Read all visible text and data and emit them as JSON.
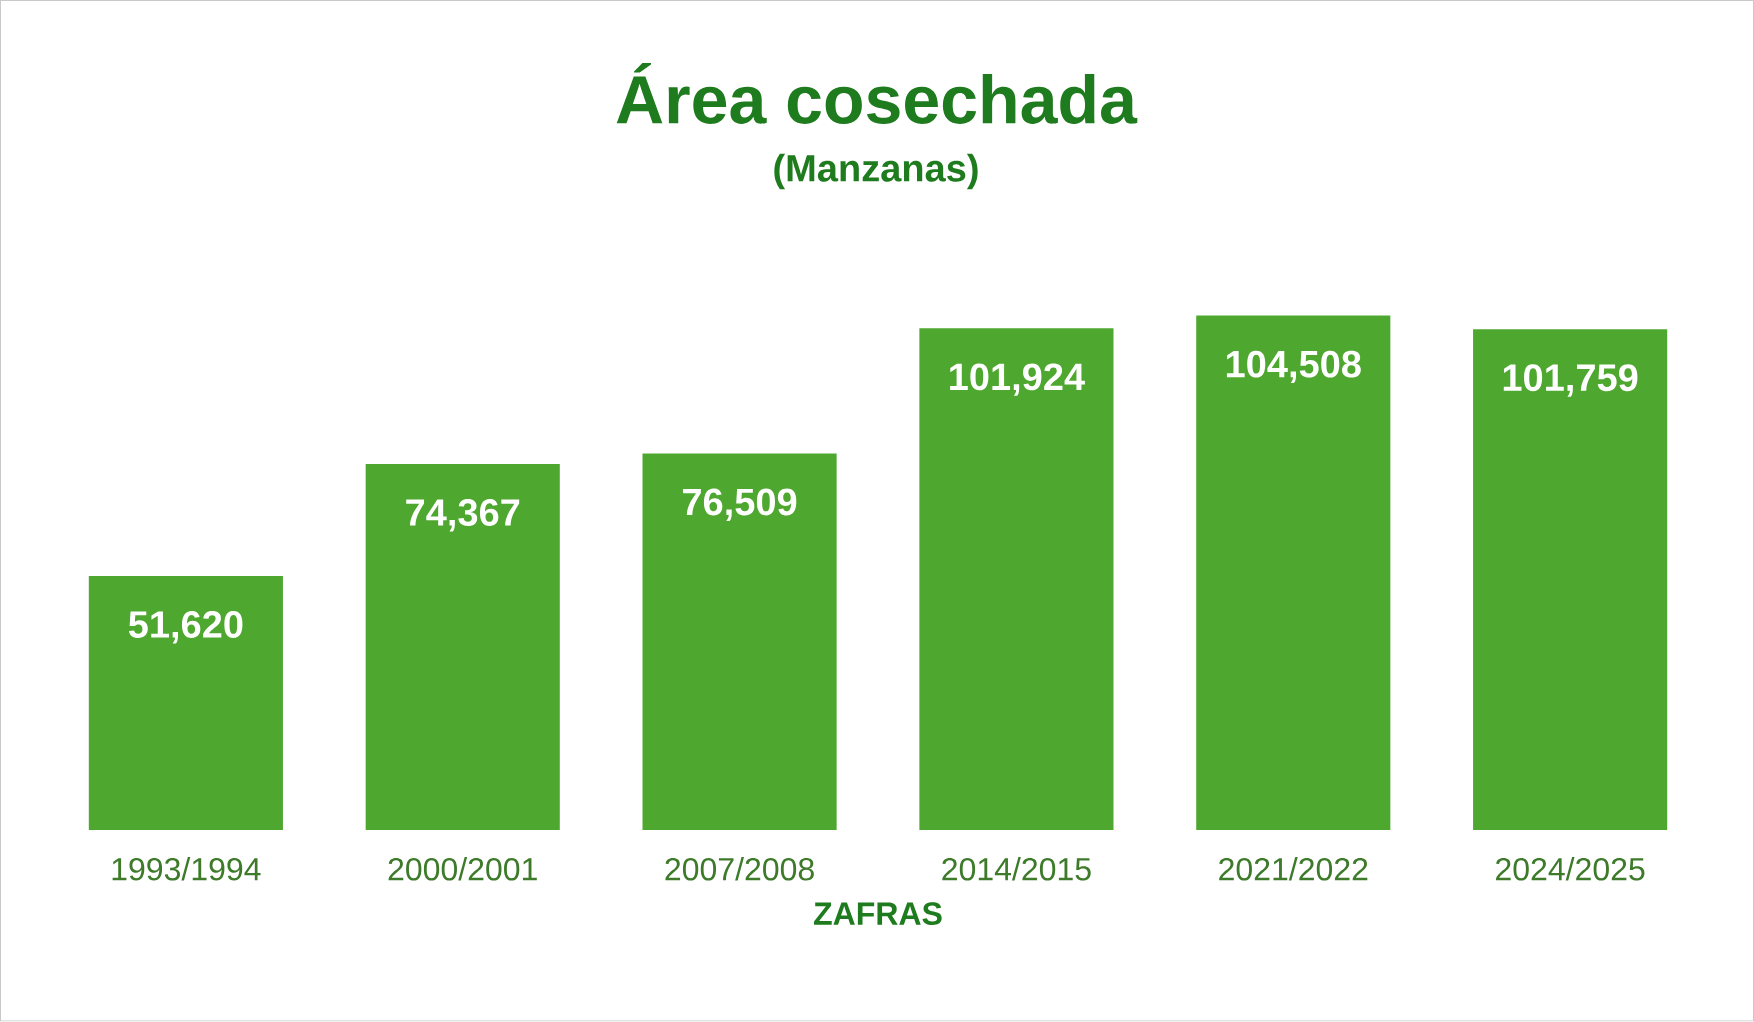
{
  "chart_data": {
    "type": "bar",
    "title": "Área cosechada",
    "subtitle": "(Manzanas)",
    "xlabel": "ZAFRAS",
    "categories": [
      "1993/1994",
      "2000/2001",
      "2007/2008",
      "2014/2015",
      "2021/2022",
      "2024/2025"
    ],
    "values": [
      51620,
      74367,
      76509,
      101924,
      104508,
      101759
    ],
    "value_labels": [
      "51,620",
      "74,367",
      "76,509",
      "101,924",
      "104,508",
      "101,759"
    ],
    "color": "#4ea72e"
  }
}
